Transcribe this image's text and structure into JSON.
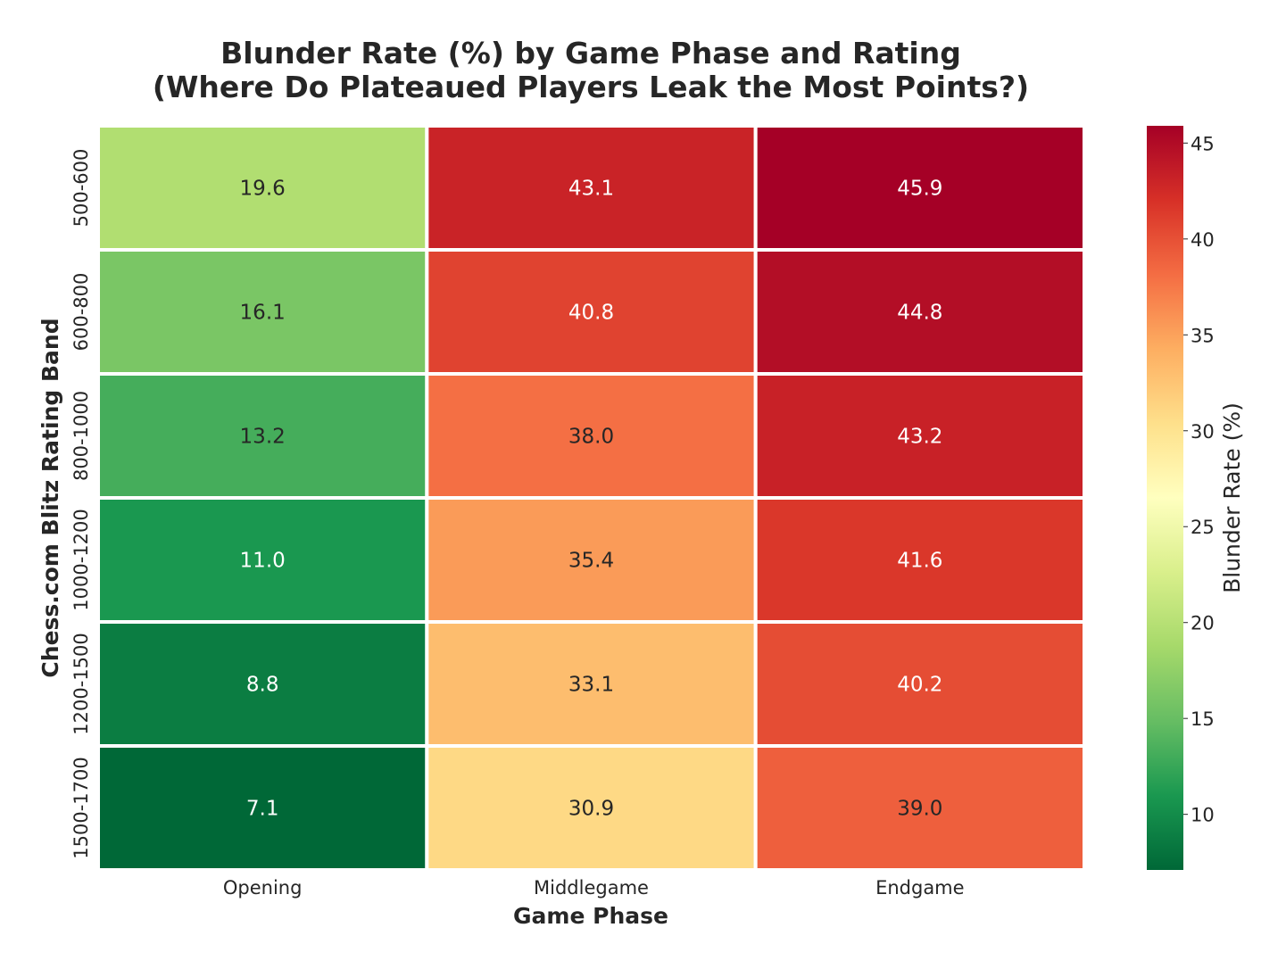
{
  "chart_data": {
    "type": "heatmap",
    "title": "Blunder Rate (%) by Game Phase and Rating",
    "subtitle": "(Where Do Plateaued Players Leak the Most Points?)",
    "xlabel": "Game Phase",
    "ylabel": "Chess.com Blitz Rating Band",
    "columns": [
      "Opening",
      "Middlegame",
      "Endgame"
    ],
    "rows": [
      "500-600",
      "600-800",
      "800-1000",
      "1000-1200",
      "1200-1500",
      "1500-1700"
    ],
    "values": [
      [
        19.6,
        43.1,
        45.9
      ],
      [
        16.1,
        40.8,
        44.8
      ],
      [
        13.2,
        38.0,
        43.2
      ],
      [
        11.0,
        35.4,
        41.6
      ],
      [
        8.8,
        33.1,
        40.2
      ],
      [
        7.1,
        30.9,
        39.0
      ]
    ],
    "value_format": "0.0",
    "colormap": "RdYlGn_r",
    "color_range": [
      7.1,
      45.9
    ],
    "colorbar": {
      "label": "Blunder Rate (%)",
      "ticks": [
        10,
        15,
        20,
        25,
        30,
        35,
        40,
        45
      ]
    },
    "grid": false,
    "cell_border_color": "#ffffff"
  }
}
